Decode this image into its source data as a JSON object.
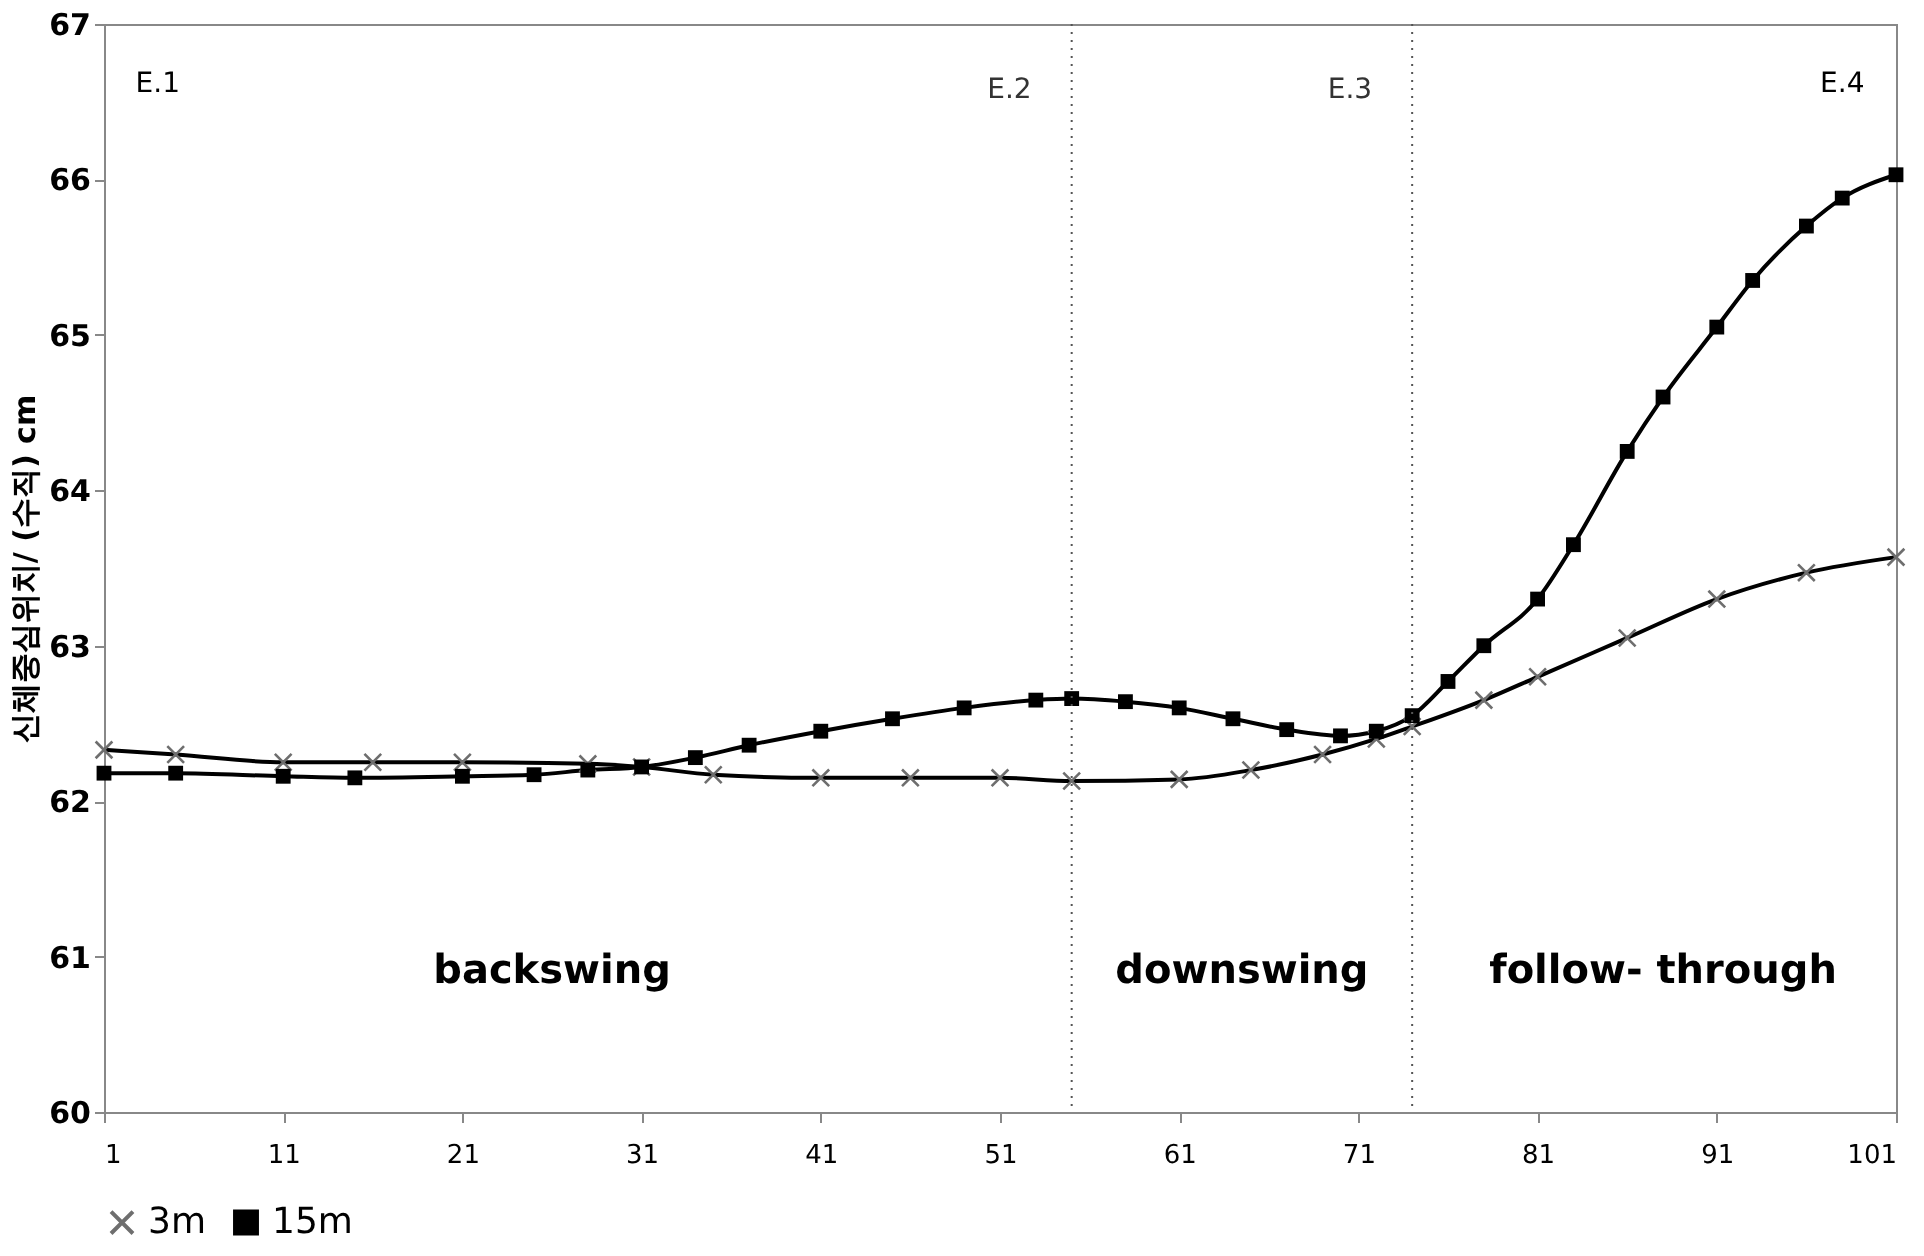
{
  "chart_data": {
    "type": "line",
    "ylabel": "신체중심위치/ (수직) cm",
    "xlim": [
      1,
      101
    ],
    "xticks": [
      1,
      11,
      21,
      31,
      41,
      51,
      61,
      71,
      81,
      91,
      101
    ],
    "ylim": [
      60,
      67
    ],
    "yticks": [
      60,
      61,
      62,
      63,
      64,
      65,
      66,
      67
    ],
    "grid": false,
    "legend": "bottom",
    "line_style": "solid",
    "series": [
      {
        "name": "3m",
        "color": "#6e6e6e",
        "marker": "cross",
        "x": [
          1,
          5,
          11,
          16,
          21,
          28,
          31,
          35,
          41,
          46,
          51,
          55,
          61,
          65,
          69,
          72,
          74,
          78,
          81,
          86,
          91,
          96,
          101
        ],
        "values": [
          62.33,
          62.3,
          62.25,
          62.25,
          62.25,
          62.24,
          62.22,
          62.17,
          62.15,
          62.15,
          62.15,
          62.13,
          62.14,
          62.2,
          62.3,
          62.4,
          62.48,
          62.65,
          62.8,
          63.05,
          63.3,
          63.47,
          63.57
        ]
      },
      {
        "name": "15m",
        "color": "#000000",
        "marker": "square",
        "x": [
          1,
          5,
          11,
          15,
          21,
          25,
          28,
          31,
          34,
          37,
          41,
          45,
          49,
          53,
          55,
          58,
          61,
          64,
          67,
          70,
          72,
          74,
          76,
          78,
          81,
          83,
          86,
          88,
          91,
          93,
          96,
          98,
          101
        ],
        "values": [
          62.18,
          62.18,
          62.16,
          62.15,
          62.16,
          62.17,
          62.2,
          62.22,
          62.28,
          62.36,
          62.45,
          62.53,
          62.6,
          62.65,
          62.66,
          62.64,
          62.6,
          62.53,
          62.46,
          62.42,
          62.45,
          62.55,
          62.77,
          63.0,
          63.3,
          63.65,
          64.25,
          64.6,
          65.05,
          65.35,
          65.7,
          65.88,
          66.03
        ]
      }
    ],
    "ref_lines": [
      {
        "axis": "x",
        "value": 55,
        "label": "E.2",
        "line_style": "dotted",
        "color": "#555555"
      },
      {
        "axis": "x",
        "value": 74,
        "label": "E.3",
        "line_style": "dotted",
        "color": "#555555"
      }
    ],
    "annotations": [
      "E.1",
      "E.4",
      "backswing",
      "downswing",
      "follow- through"
    ]
  }
}
